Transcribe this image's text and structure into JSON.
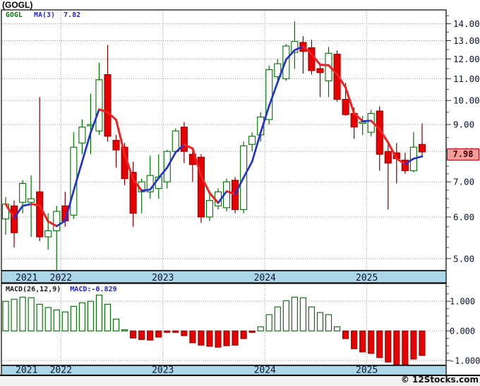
{
  "title": "(GOGL)",
  "legend": {
    "symbol": "GOGL",
    "ma_label": "MA(3)",
    "ma_value": "7.82"
  },
  "macd_header": {
    "label": "MACD(26,12,9)",
    "value_label": "MACD:-0.829"
  },
  "price_tag": "7.98",
  "copyright": "© 12Stocks.com",
  "colors": {
    "up_border": "#007000",
    "up_fill": "#FFFFFF",
    "down_fill": "#E60000",
    "down_border": "#9B0000",
    "down_wick": "#7A0000",
    "ma_up": "#2233CC",
    "ma_down": "#EE2222",
    "grid": "#999999",
    "band_bg": "#ABD7E8",
    "band_text": "#0A1430",
    "axis_text": "#0A1430",
    "frame": "#000000",
    "macd_pos_border": "#006600",
    "macd_pos_fill": "#FFFFFF",
    "macd_neg_fill": "#E60000",
    "macd_neg_border": "#8B0000",
    "footer_bg": "#F2F2F2"
  },
  "x_years": [
    {
      "label": "2021",
      "start_index": 0
    },
    {
      "label": "2022",
      "start_index": 7
    },
    {
      "label": "2023",
      "start_index": 19
    },
    {
      "label": "2024",
      "start_index": 31
    },
    {
      "label": "2025",
      "start_index": 43
    }
  ],
  "chart_data": [
    {
      "type": "candlestick",
      "title": "GOGL monthly price with MA(3)",
      "y_scale": "log",
      "ylim": [
        4.748,
        14.876
      ],
      "yticks": [
        "14.00",
        "13.00",
        "12.00",
        "11.00",
        "10.00",
        "9.00",
        "8.00",
        "7.00",
        "6.00",
        "5.00"
      ],
      "grid": true,
      "legend_position": "top-left",
      "ma_period": 3,
      "ma_last": 7.82,
      "last_price": 7.98,
      "candles_ohlc": [
        [
          5.95,
          6.55,
          5.55,
          6.35
        ],
        [
          6.3,
          6.45,
          5.25,
          5.6
        ],
        [
          6.4,
          7.05,
          6.1,
          6.95
        ],
        [
          6.4,
          7.2,
          5.5,
          6.5
        ],
        [
          6.7,
          10.15,
          5.4,
          5.5
        ],
        [
          5.5,
          6.1,
          5.2,
          5.65
        ],
        [
          5.65,
          6.3,
          4.7,
          6.15
        ],
        [
          6.3,
          6.7,
          5.75,
          5.9
        ],
        [
          6.05,
          8.7,
          5.95,
          8.15
        ],
        [
          8.3,
          9.2,
          7.9,
          8.9
        ],
        [
          8.95,
          10.3,
          7.9,
          9.0
        ],
        [
          8.75,
          11.8,
          8.6,
          10.95
        ],
        [
          11.2,
          12.75,
          8.35,
          8.55
        ],
        [
          8.4,
          8.6,
          7.45,
          8.05
        ],
        [
          8.15,
          8.3,
          6.9,
          7.1
        ],
        [
          7.3,
          7.65,
          5.75,
          6.1
        ],
        [
          6.7,
          7.1,
          6.1,
          7.0
        ],
        [
          6.7,
          7.85,
          6.5,
          7.2
        ],
        [
          6.8,
          7.9,
          6.5,
          7.15
        ],
        [
          7.0,
          8.05,
          6.8,
          8.0
        ],
        [
          8.0,
          8.85,
          7.9,
          8.75
        ],
        [
          8.9,
          9.1,
          7.6,
          8.0
        ],
        [
          7.9,
          8.05,
          7.0,
          7.55
        ],
        [
          7.8,
          7.9,
          5.85,
          6.0
        ],
        [
          6.0,
          6.65,
          5.9,
          6.45
        ],
        [
          6.3,
          6.8,
          6.2,
          6.7
        ],
        [
          6.25,
          7.1,
          6.15,
          7.0
        ],
        [
          7.05,
          7.15,
          6.1,
          6.2
        ],
        [
          6.2,
          8.35,
          6.1,
          8.2
        ],
        [
          8.25,
          8.7,
          8.0,
          8.55
        ],
        [
          8.6,
          9.5,
          8.35,
          9.3
        ],
        [
          9.2,
          11.65,
          9.0,
          11.45
        ],
        [
          11.1,
          12.0,
          10.9,
          11.75
        ],
        [
          11.0,
          12.8,
          10.9,
          12.7
        ],
        [
          12.35,
          14.15,
          11.5,
          12.95
        ],
        [
          12.9,
          13.25,
          11.25,
          12.4
        ],
        [
          12.6,
          13.05,
          11.2,
          11.4
        ],
        [
          11.5,
          11.7,
          10.15,
          11.3
        ],
        [
          10.9,
          12.65,
          10.15,
          12.3
        ],
        [
          12.25,
          12.45,
          9.95,
          10.05
        ],
        [
          10.05,
          10.8,
          9.35,
          9.4
        ],
        [
          9.45,
          9.7,
          8.45,
          8.9
        ],
        [
          9.05,
          9.35,
          8.6,
          9.1
        ],
        [
          8.7,
          9.6,
          8.55,
          9.45
        ],
        [
          9.55,
          9.75,
          7.35,
          7.9
        ],
        [
          8.0,
          8.25,
          6.2,
          7.6
        ],
        [
          7.95,
          8.3,
          6.95,
          7.75
        ],
        [
          7.7,
          7.95,
          7.25,
          7.35
        ],
        [
          7.35,
          8.7,
          7.3,
          8.15
        ],
        [
          8.25,
          9.05,
          7.85,
          7.98
        ]
      ]
    },
    {
      "type": "bar",
      "title": "MACD(26,12,9)",
      "ylim": [
        -1.155,
        1.6
      ],
      "yticks": [
        "1.000",
        "0.000",
        "-1.000"
      ],
      "grid": true,
      "last_value": -0.829,
      "values": [
        1.0,
        1.07,
        1.14,
        1.12,
        0.9,
        0.79,
        0.71,
        0.64,
        0.83,
        0.95,
        1.0,
        1.21,
        0.9,
        0.4,
        0.02,
        -0.24,
        -0.29,
        -0.31,
        -0.21,
        -0.05,
        -0.05,
        -0.16,
        -0.4,
        -0.48,
        -0.52,
        -0.55,
        -0.5,
        -0.48,
        -0.26,
        -0.05,
        0.14,
        0.55,
        0.81,
        1.02,
        1.14,
        1.12,
        0.81,
        0.62,
        0.55,
        0.14,
        -0.26,
        -0.6,
        -0.71,
        -0.76,
        -0.9,
        -1.05,
        -1.14,
        -1.14,
        -0.95,
        -0.829
      ]
    }
  ]
}
